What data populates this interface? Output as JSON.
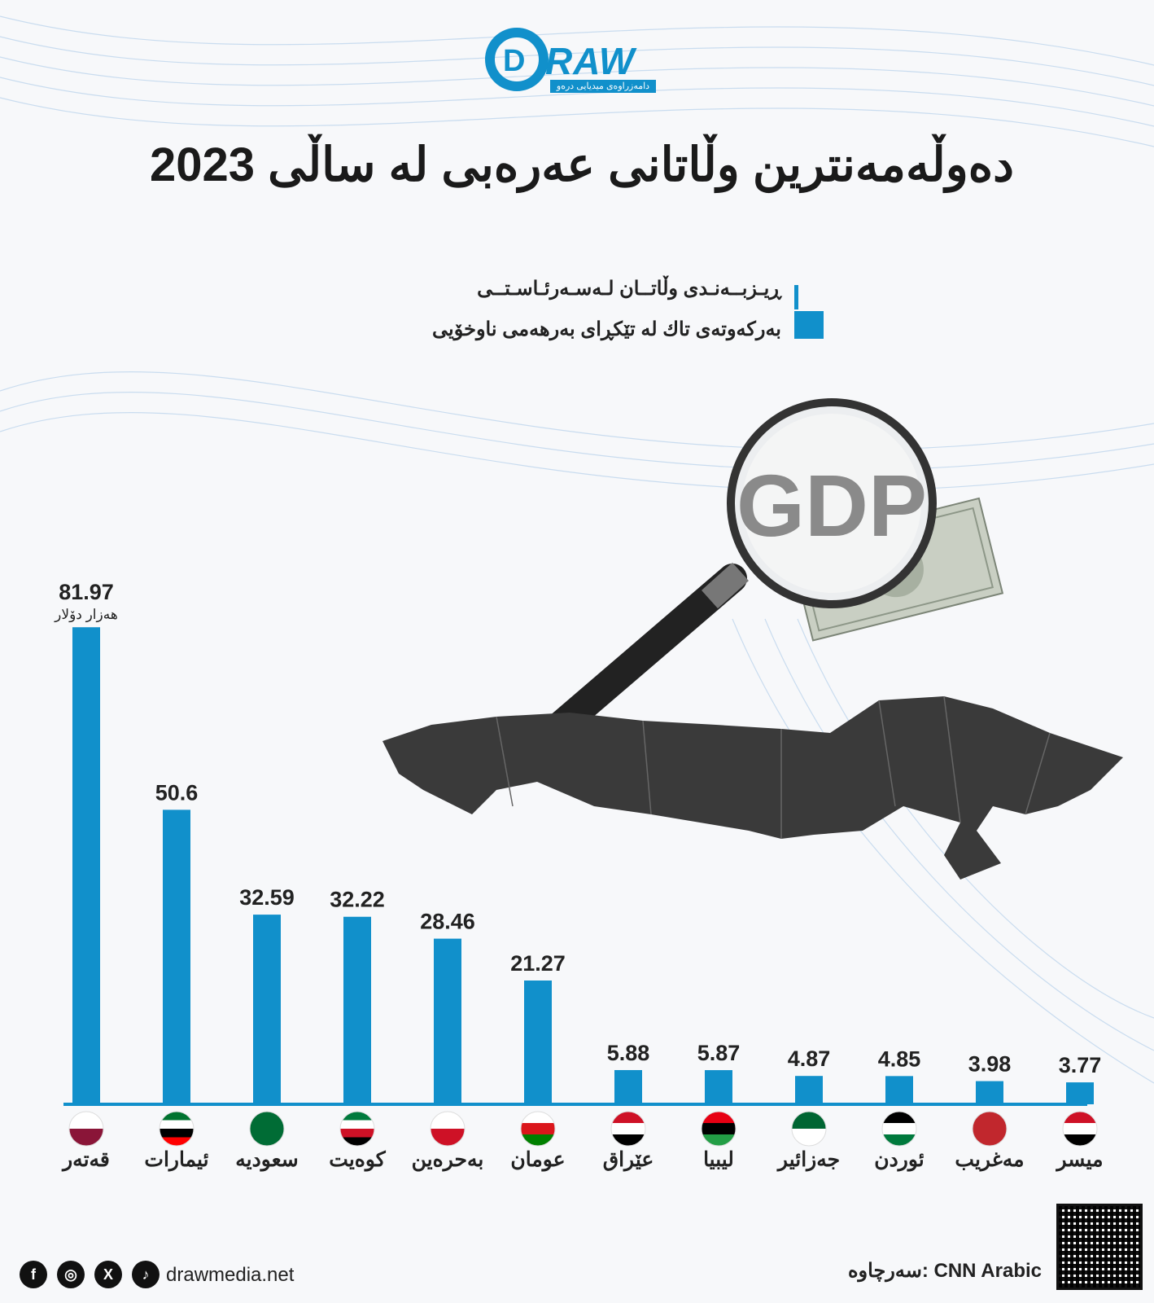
{
  "brand": {
    "logo_text": "RAW",
    "logo_letter": "D",
    "logo_subtitle": "دامەزراوەی میدیایی درەو"
  },
  "title": "دەوڵەمەنترین وڵاتانی عەرەبی لە ساڵی 2023",
  "legend": {
    "line1": "ڕیـزبــەنـدی وڵاتــان لـەسـەرئـاسـتــی",
    "line2": "بەرکەوتەی تاك لە تێکڕای بەرهەمی ناوخۆیی"
  },
  "illustration": {
    "magnifier_text": "GDP"
  },
  "chart_data": {
    "type": "bar",
    "categories": [
      "قەتەر",
      "ئیمارات",
      "سعودیە",
      "کوەیت",
      "بەحرەین",
      "عومان",
      "عێراق",
      "لیبیا",
      "جەزائیر",
      "ئوردن",
      "مەغریب",
      "میسر"
    ],
    "values": [
      81.97,
      50.6,
      32.59,
      32.22,
      28.46,
      21.27,
      5.88,
      5.87,
      4.87,
      4.85,
      3.98,
      3.77
    ],
    "value_labels": [
      "81.97",
      "50.6",
      "32.59",
      "32.22",
      "28.46",
      "21.27",
      "5.88",
      "5.87",
      "4.87",
      "4.85",
      "3.98",
      "3.77"
    ],
    "unit_label": "هەزار دۆلار",
    "flags": [
      "qatar-flag",
      "uae-flag",
      "saudi-flag",
      "kuwait-flag",
      "bahrain-flag",
      "oman-flag",
      "iraq-flag",
      "libya-flag",
      "algeria-flag",
      "jordan-flag",
      "morocco-flag",
      "egypt-flag"
    ],
    "ylim": [
      0,
      82
    ],
    "bar_color": "#1190cb",
    "grid": false
  },
  "footer": {
    "website": "drawmedia.net",
    "source": "سەرچاوە: CNN Arabic",
    "social": [
      "facebook-icon",
      "instagram-icon",
      "x-icon",
      "tiktok-icon"
    ]
  }
}
